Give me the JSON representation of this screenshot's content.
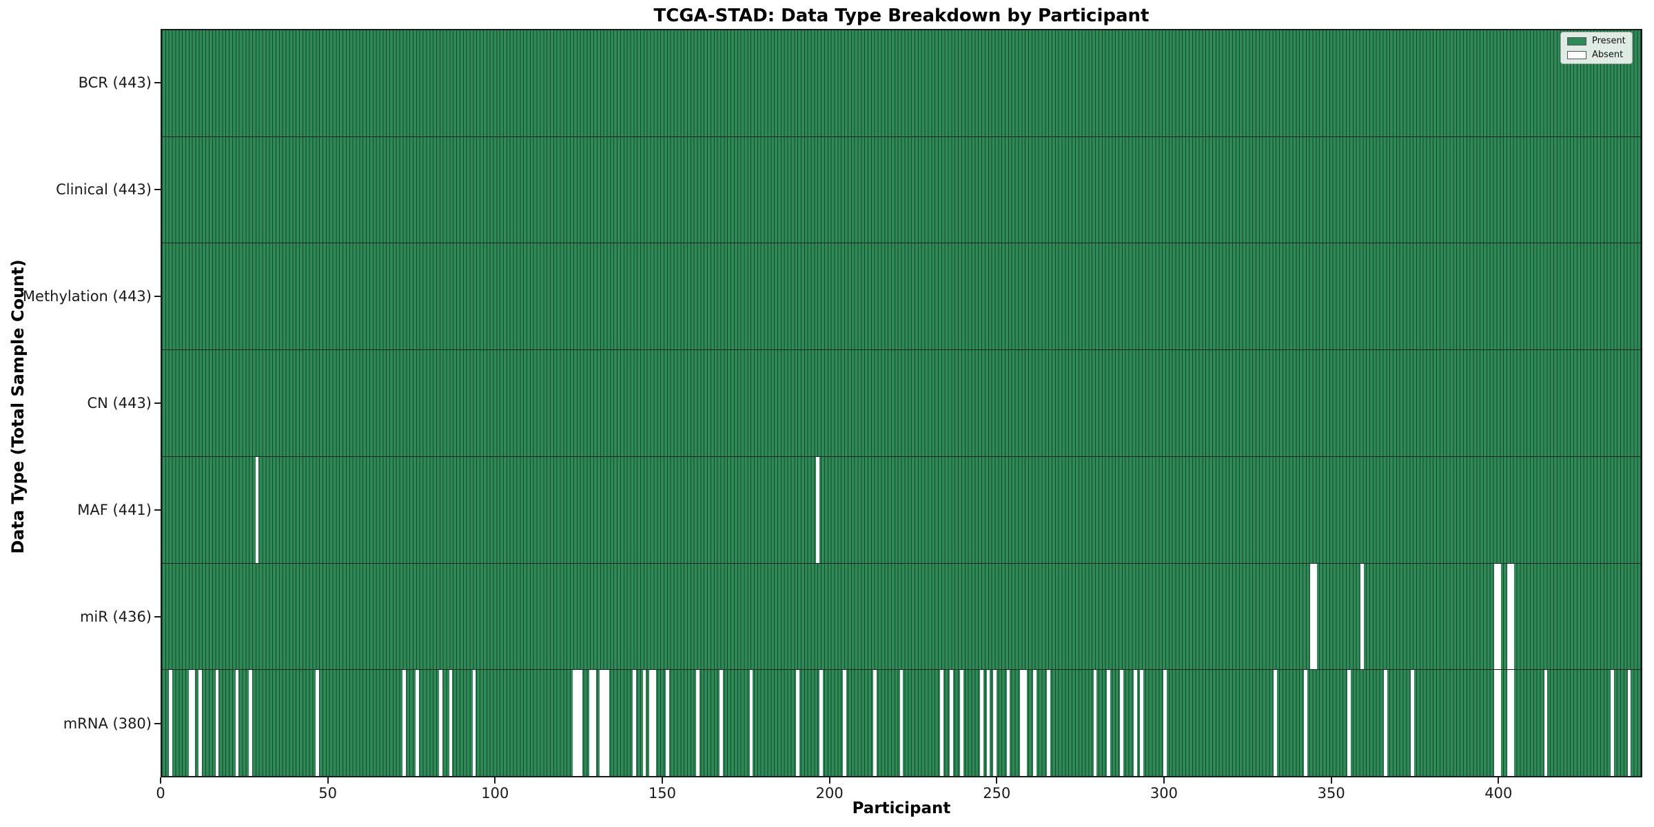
{
  "chart_data": {
    "type": "heatmap",
    "title": "TCGA-STAD: Data Type Breakdown by Participant",
    "xlabel": "Participant",
    "ylabel": "Data Type (Total Sample Count)",
    "xlim": [
      0,
      443
    ],
    "n_participants": 443,
    "x_ticks": [
      0,
      50,
      100,
      150,
      200,
      250,
      300,
      350,
      400
    ],
    "grid": false,
    "legend_position": "upper right",
    "colors": {
      "present": "#2e8b57",
      "absent": "#ffffff",
      "bar_edge": "rgba(0,0,0,0.5)"
    },
    "legend": [
      {
        "label": "Present",
        "color": "#2e8b57"
      },
      {
        "label": "Absent",
        "color": "#ffffff"
      }
    ],
    "rows": [
      {
        "name": "BCR",
        "label": "BCR (443)",
        "count": 443,
        "absent": []
      },
      {
        "name": "Clinical",
        "label": "Clinical (443)",
        "count": 443,
        "absent": []
      },
      {
        "name": "Methylation",
        "label": "Methylation (443)",
        "count": 443,
        "absent": []
      },
      {
        "name": "CN",
        "label": "CN (443)",
        "count": 443,
        "absent": []
      },
      {
        "name": "MAF",
        "label": "MAF (441)",
        "count": 441,
        "absent": [
          28,
          196
        ]
      },
      {
        "name": "miR",
        "label": "miR (436)",
        "count": 436,
        "absent": [
          344,
          345,
          359,
          399,
          400,
          403,
          404
        ]
      },
      {
        "name": "mRNA",
        "label": "mRNA (380)",
        "count": 380,
        "absent": [
          2,
          8,
          9,
          11,
          16,
          22,
          26,
          46,
          72,
          76,
          83,
          86,
          93,
          123,
          124,
          125,
          128,
          129,
          131,
          132,
          133,
          141,
          144,
          146,
          147,
          151,
          160,
          167,
          176,
          190,
          197,
          204,
          213,
          221,
          233,
          236,
          239,
          245,
          247,
          249,
          253,
          257,
          258,
          261,
          265,
          279,
          283,
          287,
          291,
          293,
          300,
          333,
          342,
          355,
          366,
          374,
          399,
          400,
          403,
          404,
          414,
          434,
          439
        ]
      }
    ]
  }
}
